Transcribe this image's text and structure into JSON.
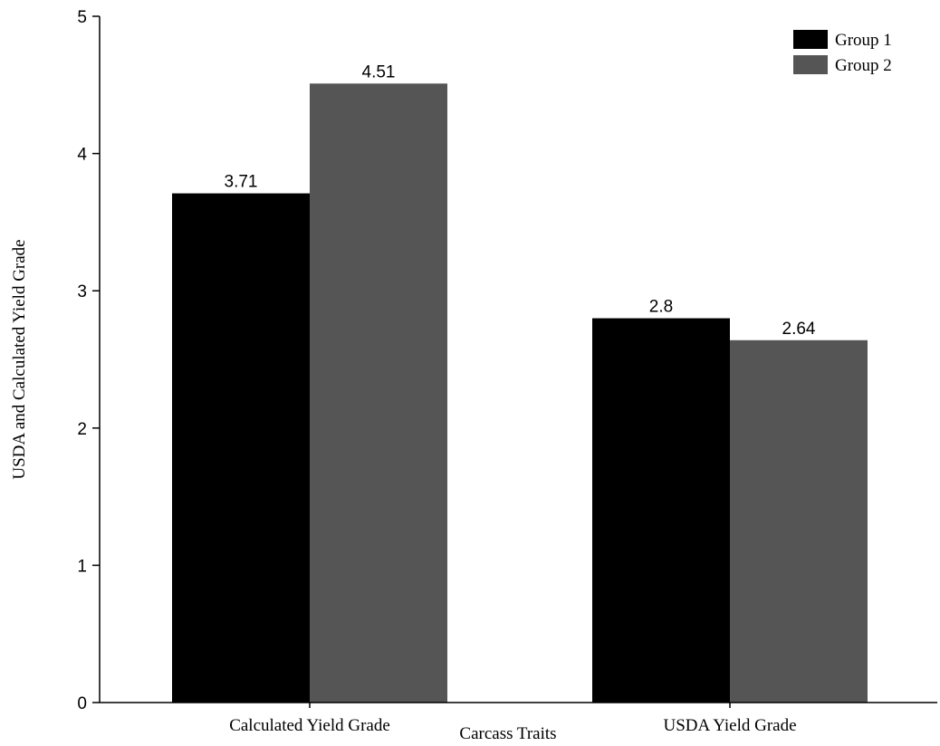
{
  "chart_data": {
    "type": "bar",
    "title": "",
    "xlabel": "Carcass Traits",
    "ylabel": "USDA and Calculated Yield Grade",
    "categories": [
      "Calculated Yield Grade",
      "USDA Yield Grade"
    ],
    "series": [
      {
        "name": "Group 1",
        "color": "#000000",
        "values": [
          3.71,
          2.8
        ]
      },
      {
        "name": "Group 2",
        "color": "#555555",
        "values": [
          4.51,
          2.64
        ]
      }
    ],
    "ylim": [
      0,
      5
    ],
    "yticks": [
      0,
      1,
      2,
      3,
      4,
      5
    ],
    "data_labels": [
      [
        "3.71",
        "2.8"
      ],
      [
        "4.51",
        "2.64"
      ]
    ],
    "legend": {
      "position": "top-right"
    },
    "grid": false
  }
}
